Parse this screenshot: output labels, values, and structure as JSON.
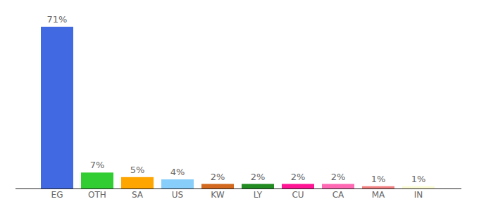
{
  "chart_data": {
    "type": "bar",
    "categories": [
      "EG",
      "OTH",
      "SA",
      "US",
      "KW",
      "LY",
      "CU",
      "CA",
      "MA",
      "IN"
    ],
    "values": [
      71,
      7,
      5,
      4,
      2,
      2,
      2,
      2,
      1,
      1
    ],
    "value_labels": [
      "71%",
      "7%",
      "5%",
      "4%",
      "2%",
      "2%",
      "2%",
      "2%",
      "1%",
      "1%"
    ],
    "colors": [
      "#4169e1",
      "#32cd32",
      "#ffa500",
      "#87cefa",
      "#d2691e",
      "#228b22",
      "#ff1493",
      "#ff69b4",
      "#f08080",
      "#fafad2"
    ],
    "ylim": [
      0,
      71
    ],
    "data_labels": true,
    "grid": false,
    "tick_labels": "x"
  }
}
